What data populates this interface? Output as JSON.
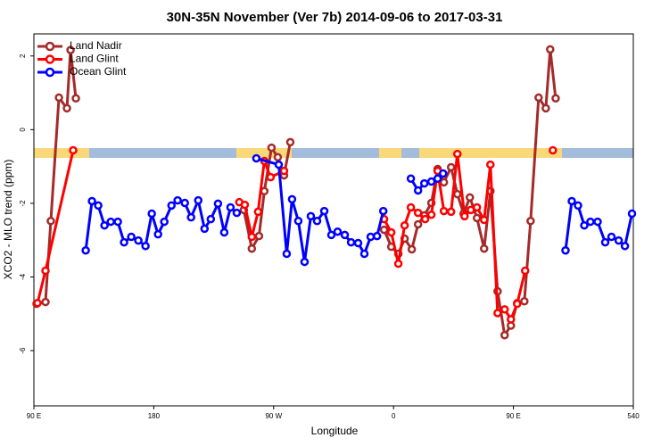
{
  "chart_data": {
    "type": "line",
    "title": "30N-35N November (Ver 7b)   2014-09-06 to 2017-03-31",
    "x_label": "Longitude",
    "y_label": "XCO2 - MLO trend (ppm)",
    "xlim": [
      90,
      540
    ],
    "ylim": [
      -7.5,
      2.6
    ],
    "xticks": [
      {
        "value": 90,
        "label": "90 E"
      },
      180,
      {
        "value": 270,
        "label": "90 W"
      },
      {
        "value": 360,
        "label": "0"
      },
      {
        "value": 450,
        "label": "90 E"
      },
      540
    ],
    "yticks": [
      -6,
      -4,
      -2,
      0,
      2
    ],
    "legend_position": "top-left",
    "series": [
      {
        "name": "Land Nadir",
        "color": "#a52a2a",
        "x": [
          92,
          98.7,
          102.7,
          108.8,
          114.8,
          117.5,
          121.5,
          180,
          247.6,
          253.6,
          259.0,
          263.0,
          268.4,
          273.1,
          277.8,
          282.5,
          320,
          352.9,
          358.3,
          363.6,
          368.3,
          373.7,
          378.4,
          383.1,
          388.4,
          393.1,
          397.8,
          403.2,
          407.9,
          412.6,
          417.3,
          422.6,
          428.0,
          432.7,
          438.1,
          443.4,
          448.1,
          452.8,
          458.2,
          462.9,
          468.9,
          474.3,
          477.6,
          481.7
        ],
        "values": [
          -4.73,
          -4.68,
          -2.48,
          0.87,
          0.58,
          2.16,
          0.85,
          null,
          -2.18,
          -3.23,
          -2.89,
          -1.67,
          -0.49,
          -0.75,
          -1.24,
          -0.34,
          null,
          -2.72,
          -3.18,
          -3.37,
          -2.96,
          -3.25,
          -2.57,
          -2.33,
          -1.99,
          -1.07,
          -1.43,
          -1.02,
          -1.75,
          -2.28,
          -1.84,
          -2.4,
          -3.23,
          -1.67,
          -4.39,
          -5.58,
          -5.32,
          -4.71,
          -4.66,
          -2.48,
          0.87,
          0.58,
          2.18,
          0.85
        ]
      },
      {
        "name": "Land Glint",
        "color": "#ff0000",
        "x": [
          92.7,
          98.7,
          119.5,
          180,
          244.2,
          248.3,
          253.6,
          258.3,
          263.0,
          267.7,
          277.8,
          320,
          352.9,
          358.3,
          363.6,
          368.3,
          373.0,
          378.4,
          383.7,
          388.4,
          393.1,
          397.8,
          403.2,
          407.9,
          413.3,
          418.0,
          422.6,
          428.0,
          432.7,
          438.1,
          443.4,
          448.1,
          452.8,
          458.8,
          470,
          479.6
        ],
        "values": [
          -4.71,
          -3.83,
          -0.56,
          null,
          -1.97,
          -2.04,
          -2.91,
          -2.23,
          -0.85,
          -1.29,
          -1.12,
          null,
          -2.43,
          -2.79,
          -3.64,
          -2.6,
          -2.11,
          -2.26,
          -2.43,
          -2.31,
          -1.12,
          -2.21,
          -2.23,
          -0.66,
          -2.35,
          -2.18,
          -2.11,
          -2.45,
          -0.95,
          -4.98,
          -4.88,
          -5.15,
          -4.73,
          -3.83,
          null,
          -0.56
        ]
      },
      {
        "name": "Ocean Glint",
        "color": "#0000ff",
        "x": [
          128.9,
          133.6,
          138.3,
          143.0,
          147.7,
          153.0,
          157.7,
          163.1,
          168.4,
          173.8,
          178.5,
          183.2,
          187.9,
          193.3,
          197.9,
          203.3,
          208.0,
          213.4,
          218.1,
          222.8,
          228.2,
          232.9,
          237.6,
          242.3,
          250,
          257.0,
          273.8,
          279.8,
          283.8,
          288.5,
          293.2,
          297.9,
          302.6,
          308.0,
          313.3,
          318.0,
          323.4,
          328.1,
          333.4,
          338.1,
          342.8,
          347.6,
          352.3,
          362,
          373.0,
          378.4,
          383.1,
          388.4,
          393.1,
          397.2,
          440,
          489.1,
          493.8,
          498.5,
          503.2,
          507.8,
          513.2,
          518.9,
          523.6,
          529.0,
          533.7,
          539.0
        ],
        "values": [
          -3.28,
          -1.94,
          -2.06,
          -2.6,
          -2.5,
          -2.5,
          -3.06,
          -2.91,
          -3.01,
          -3.16,
          -2.28,
          -2.84,
          -2.5,
          -2.06,
          -1.92,
          -1.99,
          -2.38,
          -1.92,
          -2.69,
          -2.43,
          -2.01,
          -2.79,
          -2.11,
          -2.26,
          null,
          -0.78,
          -0.95,
          -3.37,
          -1.89,
          -2.48,
          -3.59,
          -2.35,
          -2.48,
          -2.21,
          -2.86,
          -2.77,
          -2.86,
          -3.06,
          -3.08,
          -3.37,
          -2.91,
          -2.89,
          -2.21,
          null,
          -1.33,
          -1.65,
          -1.46,
          -1.41,
          -1.33,
          -1.19,
          null,
          -3.28,
          -1.94,
          -2.06,
          -2.6,
          -2.5,
          -2.5,
          -3.06,
          -2.91,
          -3.01,
          -3.16,
          -2.28
        ]
      }
    ]
  }
}
